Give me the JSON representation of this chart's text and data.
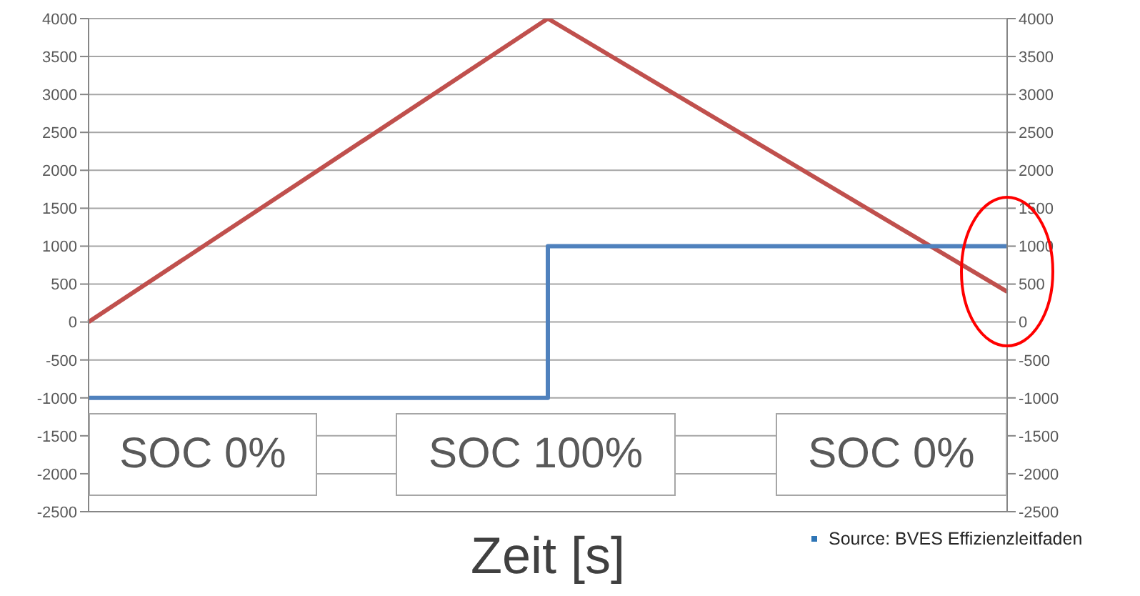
{
  "chart_data": {
    "type": "line",
    "xlabel": "Zeit [s]",
    "categories": [
      null,
      null,
      null
    ],
    "series": [
      {
        "color": "#c0504d",
        "values": [
          0,
          4000,
          400
        ]
      },
      {
        "type": "step",
        "color": "#4f81bd",
        "values": [
          -1000,
          1000,
          1000
        ]
      }
    ],
    "ylim": [
      -2500,
      4000
    ],
    "yticks": [
      -2500,
      -2000,
      -1500,
      -1000,
      -500,
      0,
      500,
      1000,
      1500,
      2000,
      2500,
      3000,
      3500,
      4000
    ],
    "y2lim": [
      -2500,
      4000
    ],
    "y2ticks": [
      -2500,
      -2000,
      -1500,
      -1000,
      -500,
      0,
      500,
      1000,
      1500,
      2000,
      2500,
      3000,
      3500,
      4000
    ],
    "grid": "y",
    "tick_labels": "y",
    "annotations": [
      "SOC 0%",
      "SOC 100%",
      "SOC 0%",
      "Source: BVES Effizienzleitfaden"
    ]
  }
}
